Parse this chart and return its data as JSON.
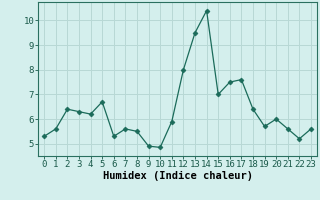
{
  "x": [
    0,
    1,
    2,
    3,
    4,
    5,
    6,
    7,
    8,
    9,
    10,
    11,
    12,
    13,
    14,
    15,
    16,
    17,
    18,
    19,
    20,
    21,
    22,
    23
  ],
  "y": [
    5.3,
    5.6,
    6.4,
    6.3,
    6.2,
    6.7,
    5.3,
    5.6,
    5.5,
    4.9,
    4.85,
    5.9,
    8.0,
    9.5,
    10.4,
    7.0,
    7.5,
    7.6,
    6.4,
    5.7,
    6.0,
    5.6,
    5.2,
    5.6
  ],
  "line_color": "#1b6b5a",
  "marker": "D",
  "marker_size": 2.5,
  "bg_color": "#d4efed",
  "grid_color": "#b8d8d5",
  "xlabel": "Humidex (Indice chaleur)",
  "ylim": [
    4.5,
    10.75
  ],
  "xlim": [
    -0.5,
    23.5
  ],
  "yticks": [
    5,
    6,
    7,
    8,
    9,
    10
  ],
  "xticks": [
    0,
    1,
    2,
    3,
    4,
    5,
    6,
    7,
    8,
    9,
    10,
    11,
    12,
    13,
    14,
    15,
    16,
    17,
    18,
    19,
    20,
    21,
    22,
    23
  ],
  "xlabel_fontsize": 7.5,
  "tick_fontsize": 6.5,
  "line_width": 0.9
}
